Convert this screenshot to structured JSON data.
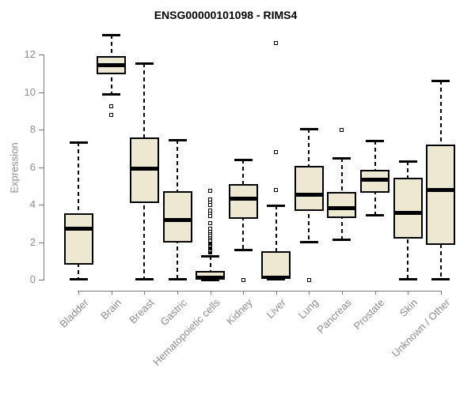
{
  "title": "ENSG00000101098 - RIMS4",
  "ylabel": "Expression",
  "colors": {
    "box_fill": "#EDE8D1",
    "box_border": "#000000",
    "median": "#000000",
    "whisker": "#000000",
    "axis_line": "#7a7a7a",
    "axis_text": "#8c8c8c",
    "title_text": "#000000",
    "background": "#ffffff"
  },
  "chart_data": {
    "type": "boxplot",
    "title": "ENSG00000101098 - RIMS4",
    "xlabel": "",
    "ylabel": "Expression",
    "ytick_range": [
      0,
      12
    ],
    "yticks": [
      0,
      2,
      4,
      6,
      8,
      10,
      12
    ],
    "grid": false,
    "legend": false,
    "categories": [
      "Bladder",
      "Brain",
      "Breast",
      "Gastric",
      "Hematopoietic cells",
      "Kidney",
      "Liver",
      "Lung",
      "Pancreas",
      "Prostate",
      "Skin",
      "Unknown / Other"
    ],
    "series": [
      {
        "name": "Bladder",
        "whisker_low": 0.05,
        "q1": 0.78,
        "median": 2.72,
        "q3": 3.55,
        "whisker_high": 7.33,
        "outliers": []
      },
      {
        "name": "Brain",
        "whisker_low": 9.9,
        "q1": 10.95,
        "median": 11.45,
        "q3": 11.9,
        "whisker_high": 13.05,
        "outliers": [
          9.26,
          8.76
        ]
      },
      {
        "name": "Breast",
        "whisker_low": 0.05,
        "q1": 4.1,
        "median": 5.9,
        "q3": 7.6,
        "whisker_high": 11.55,
        "outliers": []
      },
      {
        "name": "Gastric",
        "whisker_low": 0.05,
        "q1": 2.0,
        "median": 3.2,
        "q3": 4.7,
        "whisker_high": 7.45,
        "outliers": []
      },
      {
        "name": "Hematopoietic cells",
        "whisker_low": 0.02,
        "q1": 0.02,
        "median": 0.1,
        "q3": 0.46,
        "whisker_high": 1.26,
        "outliers": [
          1.45,
          1.5,
          1.55,
          1.6,
          1.65,
          1.7,
          1.75,
          1.8,
          1.85,
          1.9,
          1.95,
          2.0,
          2.05,
          2.1,
          2.2,
          2.3,
          2.4,
          2.5,
          2.6,
          2.7,
          3.03,
          3.4,
          3.56,
          3.7,
          3.96,
          4.16,
          4.26,
          4.73
        ]
      },
      {
        "name": "Kidney",
        "whisker_low": 1.6,
        "q1": 3.25,
        "median": 4.3,
        "q3": 5.1,
        "whisker_high": 6.4,
        "outliers": [
          0.0
        ]
      },
      {
        "name": "Liver",
        "whisker_low": 0.03,
        "q1": 0.03,
        "median": 0.1,
        "q3": 1.5,
        "whisker_high": 3.96,
        "outliers": [
          4.76,
          6.8,
          12.63
        ]
      },
      {
        "name": "Lung",
        "whisker_low": 2.03,
        "q1": 3.65,
        "median": 4.52,
        "q3": 6.06,
        "whisker_high": 8.03,
        "outliers": [
          0.0
        ]
      },
      {
        "name": "Pancreas",
        "whisker_low": 2.13,
        "q1": 3.28,
        "median": 3.82,
        "q3": 4.66,
        "whisker_high": 6.48,
        "outliers": [
          7.98
        ]
      },
      {
        "name": "Prostate",
        "whisker_low": 3.47,
        "q1": 4.62,
        "median": 5.32,
        "q3": 5.85,
        "whisker_high": 7.42,
        "outliers": []
      },
      {
        "name": "Skin",
        "whisker_low": 0.03,
        "q1": 2.2,
        "median": 3.54,
        "q3": 5.43,
        "whisker_high": 6.3,
        "outliers": []
      },
      {
        "name": "Unknown / Other",
        "whisker_low": 0.03,
        "q1": 1.85,
        "median": 4.77,
        "q3": 7.21,
        "whisker_high": 10.62,
        "outliers": []
      }
    ]
  }
}
